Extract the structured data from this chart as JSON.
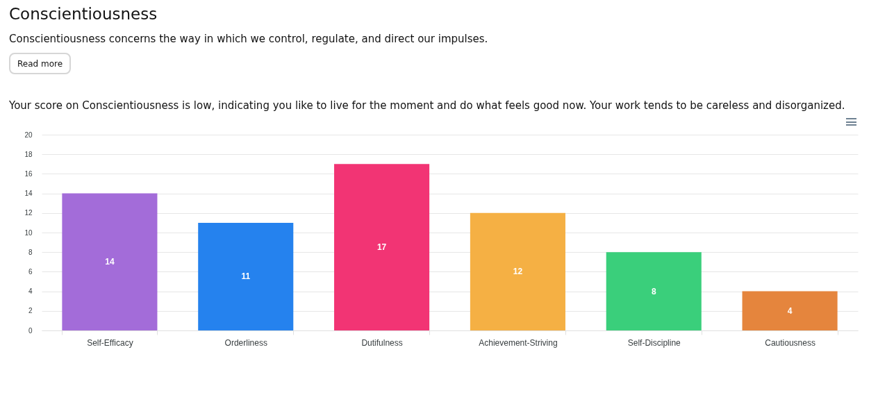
{
  "chart_data": {
    "type": "bar",
    "title": "Conscientiousness",
    "subtitle": "Conscientiousness concerns the way in which we control, regulate, and direct our impulses.",
    "annotations": [
      "Read more",
      "Your score on Conscientiousness is low, indicating you like to live for the moment and do what feels good now. Your work tends to be careless and disorganized."
    ],
    "categories": [
      "Self-Efficacy",
      "Orderliness",
      "Dutifulness",
      "Achievement-Striving",
      "Self-Discipline",
      "Cautiousness"
    ],
    "values": [
      14,
      11,
      17,
      12,
      8,
      4
    ],
    "colors": [
      "#a36cd9",
      "#2582ee",
      "#f23474",
      "#f5b044",
      "#3acf7b",
      "#e5853d"
    ],
    "ylim": [
      0,
      20
    ],
    "yticks": [
      0,
      2,
      4,
      6,
      8,
      10,
      12,
      14,
      16,
      18,
      20
    ],
    "grid": "y",
    "data_labels": true
  }
}
